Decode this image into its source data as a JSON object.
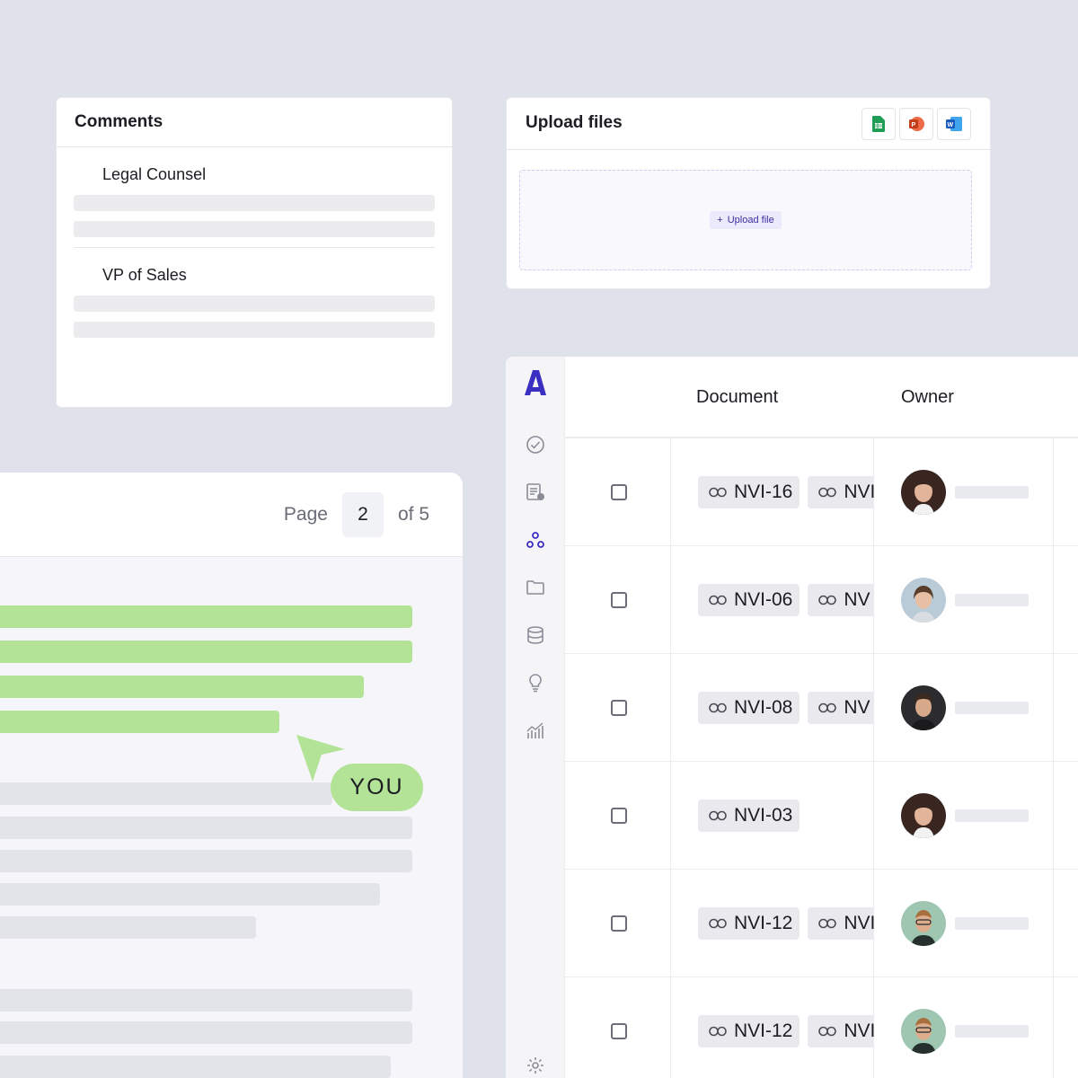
{
  "comments": {
    "title": "Comments",
    "items": [
      {
        "name": "Legal Counsel"
      },
      {
        "name": "VP of Sales"
      }
    ]
  },
  "upload": {
    "title": "Upload files",
    "button_label": "Upload file",
    "file_types": [
      "sheets-icon",
      "powerpoint-icon",
      "word-icon"
    ]
  },
  "viewer": {
    "page_label": "Page",
    "page_current": "2",
    "page_total": "of 5",
    "cursor_label": "YOU",
    "highlight_color": "#b2e397"
  },
  "table": {
    "columns": [
      "Document",
      "Owner"
    ],
    "rows": [
      {
        "docs": [
          "NVI-16",
          "NVI"
        ]
      },
      {
        "docs": [
          "NVI-06",
          "NV"
        ]
      },
      {
        "docs": [
          "NVI-08",
          "NV"
        ]
      },
      {
        "docs": [
          "NVI-03"
        ]
      },
      {
        "docs": [
          "NVI-12",
          "NVI"
        ]
      },
      {
        "docs": [
          "NVI-12",
          "NVI"
        ]
      }
    ],
    "sidebar_icons": [
      "check-circle-icon",
      "report-icon",
      "nodes-icon",
      "folder-icon",
      "database-icon",
      "lightbulb-icon",
      "analytics-icon",
      "settings-icon"
    ],
    "accent_color": "#3a2fc0"
  }
}
